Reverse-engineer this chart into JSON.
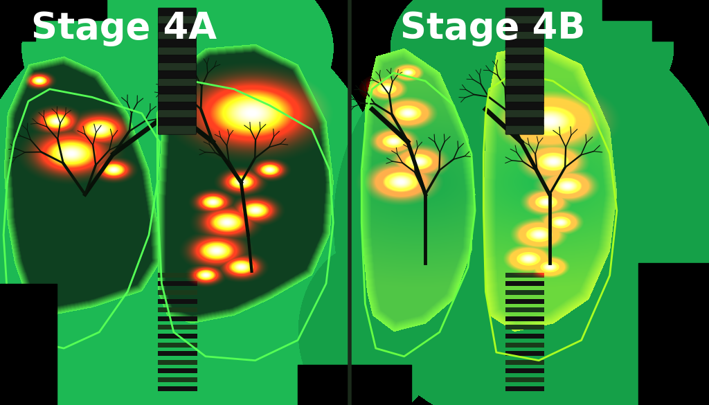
{
  "title_left": "Stage 4A",
  "title_right": "Stage 4B",
  "title_fontsize": 38,
  "title_color": "#ffffff",
  "title_fontweight": "bold",
  "bg_color": "#000000",
  "figsize": [
    10.24,
    5.85
  ],
  "dpi": 100,
  "panel_divider": 0.493,
  "left_body_color": "#1db954",
  "right_body_color": "#0d6b30",
  "lung_dark_fill": "#0d4a1e",
  "lung_edge_bright": "#44ff44",
  "trachea_color": "#1a1a1a",
  "trachea_ring_color": "#2a3a2a"
}
